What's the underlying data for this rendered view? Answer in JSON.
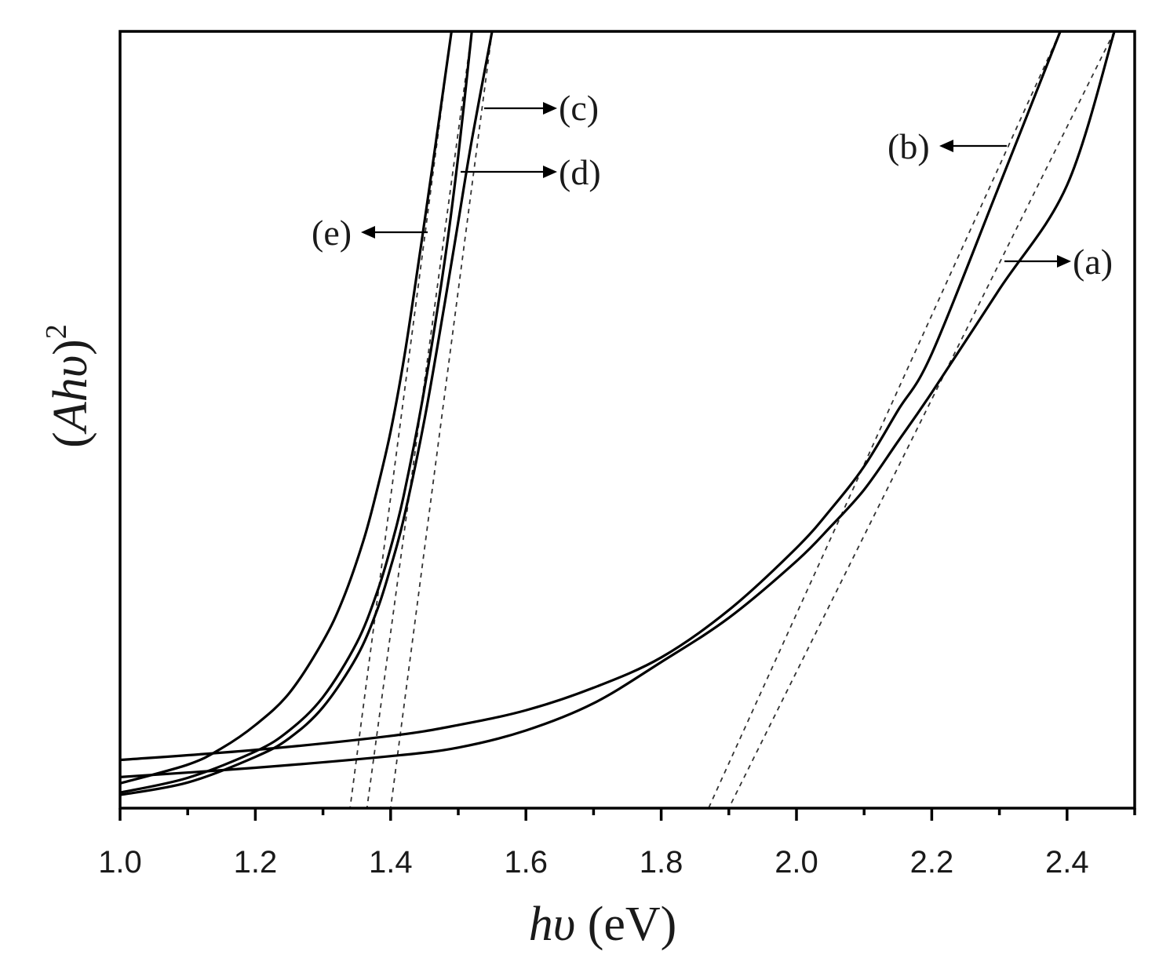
{
  "chart_data": {
    "type": "line",
    "title": "",
    "xlabel_italic": "hυ",
    "xlabel_unit": " (eV)",
    "ylabel_open": "(",
    "ylabel_italic": "Ahυ",
    "ylabel_close": ")",
    "ylabel_sup": "2",
    "xlabel": "hυ (eV)",
    "ylabel": "(Ahυ)^2",
    "xlim": [
      1.0,
      2.5
    ],
    "ylim": [
      0,
      100
    ],
    "y_units": "arbitrary (no tick labels)",
    "grid": false,
    "legend": "none (curves labelled directly with arrows)",
    "x_ticks_major": [
      1.0,
      1.2,
      1.4,
      1.6,
      1.8,
      2.0,
      2.2,
      2.4
    ],
    "x_tick_labels": [
      "1.0",
      "1.2",
      "1.4",
      "1.6",
      "1.8",
      "2.0",
      "2.2",
      "2.4"
    ],
    "x_ticks_minor": [
      1.1,
      1.3,
      1.5,
      1.7,
      1.9,
      2.1,
      2.3,
      2.5
    ],
    "series": [
      {
        "name": "(a)",
        "label": "(a)",
        "x": [
          1.0,
          1.2,
          1.4,
          1.5,
          1.6,
          1.7,
          1.8,
          1.9,
          2.0,
          2.05,
          2.1,
          2.15,
          2.2,
          2.3,
          2.4,
          2.47
        ],
        "y": [
          4.0,
          5.2,
          6.7,
          7.8,
          10.0,
          13.5,
          18.8,
          24.5,
          31.8,
          36.2,
          41.0,
          47.2,
          53.5,
          66.8,
          80.2,
          100
        ],
        "tangent_intercept_eV": 1.9,
        "tangent_top_eV": 2.47
      },
      {
        "name": "(b)",
        "label": "(b)",
        "x": [
          1.0,
          1.2,
          1.4,
          1.5,
          1.6,
          1.7,
          1.8,
          1.9,
          2.0,
          2.05,
          2.1,
          2.15,
          2.2,
          2.3,
          2.39
        ],
        "y": [
          6.2,
          7.5,
          9.3,
          10.7,
          12.6,
          15.5,
          19.4,
          25.5,
          33.5,
          38.4,
          44.0,
          51.2,
          58.5,
          80.2,
          100
        ],
        "tangent_intercept_eV": 1.87,
        "tangent_top_eV": 2.39
      },
      {
        "name": "(c)",
        "label": "(c)",
        "x": [
          1.0,
          1.1,
          1.2,
          1.25,
          1.3,
          1.35,
          1.38,
          1.4,
          1.42,
          1.45,
          1.48,
          1.5,
          1.52,
          1.55
        ],
        "y": [
          1.7,
          3.3,
          6.6,
          9.0,
          13.0,
          19.5,
          25.5,
          31.0,
          37.5,
          50.0,
          65.0,
          75.5,
          86.0,
          100
        ],
        "tangent_intercept_eV": 1.4,
        "tangent_top_eV": 1.55
      },
      {
        "name": "(d)",
        "label": "(d)",
        "x": [
          1.0,
          1.1,
          1.2,
          1.25,
          1.3,
          1.35,
          1.38,
          1.4,
          1.42,
          1.45,
          1.48,
          1.5,
          1.52
        ],
        "y": [
          2.0,
          3.9,
          7.3,
          10.0,
          14.3,
          21.3,
          27.8,
          33.5,
          40.5,
          54.0,
          70.5,
          84.0,
          100
        ],
        "tangent_intercept_eV": 1.365,
        "tangent_top_eV": 1.52
      },
      {
        "name": "(e)",
        "label": "(e)",
        "x": [
          1.0,
          1.1,
          1.15,
          1.2,
          1.25,
          1.3,
          1.33,
          1.36,
          1.38,
          1.4,
          1.42,
          1.44,
          1.46,
          1.49
        ],
        "y": [
          3.2,
          5.6,
          7.7,
          10.7,
          14.8,
          21.5,
          27.0,
          34.5,
          41.0,
          48.5,
          58.0,
          69.5,
          81.5,
          100
        ],
        "tangent_intercept_eV": 1.34,
        "tangent_top_eV": 1.49
      }
    ],
    "annotations": [
      {
        "text": "(a)",
        "arrow_direction": "right",
        "points_to_curve": "a"
      },
      {
        "text": "(b)",
        "arrow_direction": "left",
        "points_to_curve": "b"
      },
      {
        "text": "(c)",
        "arrow_direction": "right",
        "points_to_curve": "c"
      },
      {
        "text": "(d)",
        "arrow_direction": "right",
        "points_to_curve": "d"
      },
      {
        "text": "(e)",
        "arrow_direction": "left",
        "points_to_curve": "e"
      }
    ],
    "fit_lines": "dashed linear extrapolations of each curve to the x-axis (Tauc band-gap estimates)",
    "colors": {
      "curve": "#000000",
      "fit": "#333333",
      "background": "#ffffff"
    }
  },
  "labels": {
    "a": "(a)",
    "b": "(b)",
    "c": "(c)",
    "d": "(d)",
    "e": "(e)"
  }
}
